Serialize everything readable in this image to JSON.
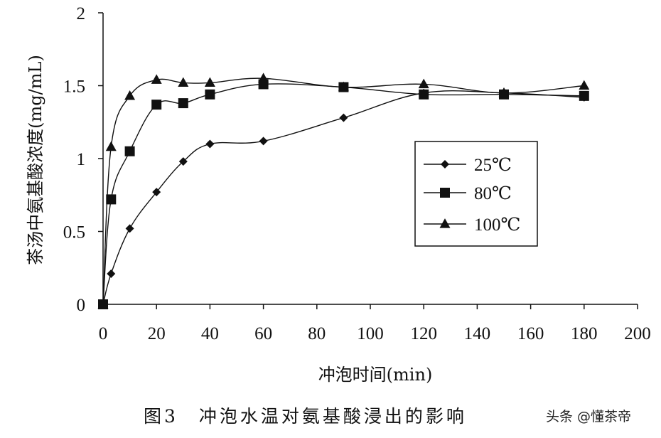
{
  "caption": "图3　冲泡水温对氨基酸浸出的影响",
  "watermark": "头条 @懂茶帝",
  "colors": {
    "line": "#111111",
    "axis": "#111111",
    "background": "#ffffff"
  },
  "chart_data": {
    "type": "line",
    "title": "",
    "xlabel": "冲泡时间(min)",
    "ylabel": "茶汤中氨基酸浓度(mg/mL)",
    "xlim": [
      0,
      200
    ],
    "ylim": [
      0,
      2
    ],
    "xticks": [
      "0",
      "20",
      "40",
      "60",
      "80",
      "100",
      "120",
      "140",
      "160",
      "180",
      "200"
    ],
    "yticks": [
      "0",
      "0.5",
      "1",
      "1.5",
      "2"
    ],
    "grid": false,
    "legend_position": "right",
    "series": [
      {
        "name": "25℃",
        "marker": "diamond",
        "x": [
          0,
          3,
          10,
          20,
          30,
          40,
          60,
          90,
          120,
          150,
          180
        ],
        "y": [
          0,
          0.21,
          0.52,
          0.77,
          0.98,
          1.1,
          1.12,
          1.28,
          1.45,
          1.45,
          1.42
        ]
      },
      {
        "name": "80℃",
        "marker": "square",
        "x": [
          0,
          3,
          10,
          20,
          30,
          40,
          60,
          90,
          120,
          150,
          180
        ],
        "y": [
          0,
          0.72,
          1.05,
          1.37,
          1.38,
          1.44,
          1.51,
          1.49,
          1.44,
          1.44,
          1.43
        ]
      },
      {
        "name": "100℃",
        "marker": "triangle",
        "x": [
          0,
          3,
          10,
          20,
          30,
          40,
          60,
          90,
          120,
          150,
          180
        ],
        "y": [
          0,
          1.08,
          1.43,
          1.54,
          1.52,
          1.52,
          1.55,
          1.49,
          1.51,
          1.45,
          1.5
        ]
      }
    ]
  }
}
